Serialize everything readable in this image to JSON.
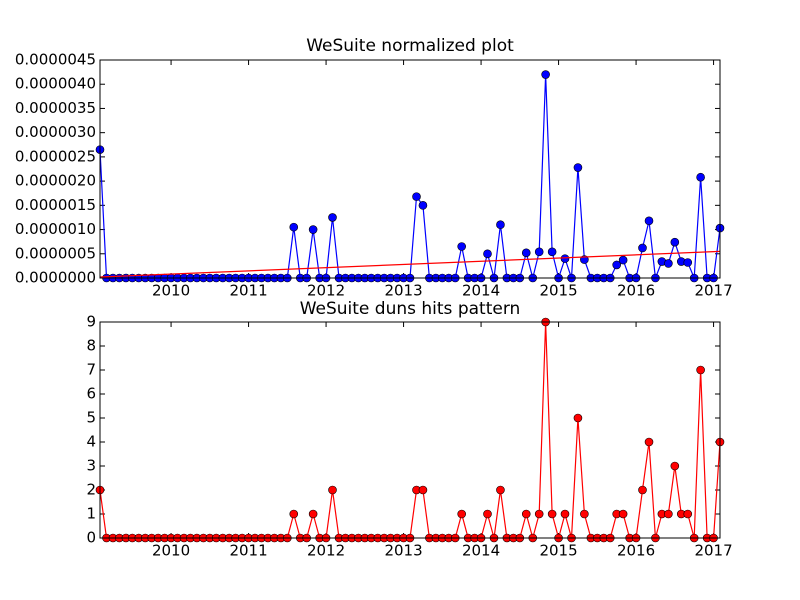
{
  "chart_data": [
    {
      "type": "line",
      "title": "WeSuite normalized plot",
      "x": [
        2009.083,
        2009.167,
        2009.25,
        2009.333,
        2009.417,
        2009.5,
        2009.583,
        2009.667,
        2009.75,
        2009.833,
        2009.917,
        2010,
        2010.083,
        2010.167,
        2010.25,
        2010.333,
        2010.417,
        2010.5,
        2010.583,
        2010.667,
        2010.75,
        2010.833,
        2010.917,
        2011,
        2011.083,
        2011.167,
        2011.25,
        2011.333,
        2011.417,
        2011.5,
        2011.583,
        2011.667,
        2011.75,
        2011.833,
        2011.917,
        2012,
        2012.083,
        2012.167,
        2012.25,
        2012.333,
        2012.417,
        2012.5,
        2012.583,
        2012.667,
        2012.75,
        2012.833,
        2012.917,
        2013,
        2013.083,
        2013.167,
        2013.25,
        2013.333,
        2013.417,
        2013.5,
        2013.583,
        2013.667,
        2013.75,
        2013.833,
        2013.917,
        2014,
        2014.083,
        2014.167,
        2014.25,
        2014.333,
        2014.417,
        2014.5,
        2014.583,
        2014.667,
        2014.75,
        2014.833,
        2014.917,
        2015,
        2015.083,
        2015.167,
        2015.25,
        2015.333,
        2015.417,
        2015.5,
        2015.583,
        2015.667,
        2015.75,
        2015.833,
        2015.917,
        2016,
        2016.083,
        2016.167,
        2016.25,
        2016.333,
        2016.417,
        2016.5,
        2016.583,
        2016.667,
        2016.75,
        2016.833,
        2016.917,
        2017,
        2017.083
      ],
      "series": [
        {
          "color": "#0000ff",
          "marker": true,
          "values": [
            2.65e-06,
            0,
            0,
            0,
            0,
            0,
            0,
            0,
            0,
            0,
            0,
            0,
            0,
            0,
            0,
            0,
            0,
            0,
            0,
            0,
            0,
            0,
            0,
            0,
            0,
            0,
            0,
            0,
            0,
            0,
            1.05e-06,
            0,
            0,
            1e-06,
            0,
            0,
            1.25e-06,
            0,
            0,
            0,
            0,
            0,
            0,
            0,
            0,
            0,
            0,
            0,
            0,
            1.68e-06,
            1.5e-06,
            0,
            0,
            0,
            0,
            0,
            6.5e-07,
            0,
            0,
            0,
            5e-07,
            0,
            1.1e-06,
            0,
            0,
            0,
            5.2e-07,
            0,
            5.4e-07,
            4.2e-06,
            5.4e-07,
            0,
            4e-07,
            0,
            2.28e-06,
            3.8e-07,
            0,
            0,
            0,
            0,
            2.7e-07,
            3.7e-07,
            0,
            0,
            6.2e-07,
            1.18e-06,
            0,
            3.4e-07,
            3e-07,
            7.4e-07,
            3.4e-07,
            3.2e-07,
            0,
            2.08e-06,
            0,
            0,
            1.03e-06
          ]
        },
        {
          "color": "#ff0000",
          "marker": false,
          "x": [
            2009.083,
            2017.083
          ],
          "values": [
            2e-08,
            5.5e-07
          ]
        }
      ],
      "xlim": [
        2009.083,
        2017.083
      ],
      "xticks": [
        2010,
        2011,
        2012,
        2013,
        2014,
        2015,
        2016,
        2017
      ],
      "ylim": [
        0,
        4.5e-06
      ],
      "yticks": [
        {
          "value": 0,
          "label": "0.0000000"
        },
        {
          "value": 5e-07,
          "label": "0.0000005"
        },
        {
          "value": 1e-06,
          "label": "0.0000010"
        },
        {
          "value": 1.5e-06,
          "label": "0.0000015"
        },
        {
          "value": 2e-06,
          "label": "0.0000020"
        },
        {
          "value": 2.5e-06,
          "label": "0.0000025"
        },
        {
          "value": 3e-06,
          "label": "0.0000030"
        },
        {
          "value": 3.5e-06,
          "label": "0.0000035"
        },
        {
          "value": 4e-06,
          "label": "0.0000040"
        },
        {
          "value": 4.5e-06,
          "label": "0.0000045"
        }
      ]
    },
    {
      "type": "line",
      "title": "WeSuite duns hits pattern",
      "x": [
        2009.083,
        2009.167,
        2009.25,
        2009.333,
        2009.417,
        2009.5,
        2009.583,
        2009.667,
        2009.75,
        2009.833,
        2009.917,
        2010,
        2010.083,
        2010.167,
        2010.25,
        2010.333,
        2010.417,
        2010.5,
        2010.583,
        2010.667,
        2010.75,
        2010.833,
        2010.917,
        2011,
        2011.083,
        2011.167,
        2011.25,
        2011.333,
        2011.417,
        2011.5,
        2011.583,
        2011.667,
        2011.75,
        2011.833,
        2011.917,
        2012,
        2012.083,
        2012.167,
        2012.25,
        2012.333,
        2012.417,
        2012.5,
        2012.583,
        2012.667,
        2012.75,
        2012.833,
        2012.917,
        2013,
        2013.083,
        2013.167,
        2013.25,
        2013.333,
        2013.417,
        2013.5,
        2013.583,
        2013.667,
        2013.75,
        2013.833,
        2013.917,
        2014,
        2014.083,
        2014.167,
        2014.25,
        2014.333,
        2014.417,
        2014.5,
        2014.583,
        2014.667,
        2014.75,
        2014.833,
        2014.917,
        2015,
        2015.083,
        2015.167,
        2015.25,
        2015.333,
        2015.417,
        2015.5,
        2015.583,
        2015.667,
        2015.75,
        2015.833,
        2015.917,
        2016,
        2016.083,
        2016.167,
        2016.25,
        2016.333,
        2016.417,
        2016.5,
        2016.583,
        2016.667,
        2016.75,
        2016.833,
        2016.917,
        2017,
        2017.083
      ],
      "series": [
        {
          "color": "#ff0000",
          "marker": true,
          "values": [
            2,
            0,
            0,
            0,
            0,
            0,
            0,
            0,
            0,
            0,
            0,
            0,
            0,
            0,
            0,
            0,
            0,
            0,
            0,
            0,
            0,
            0,
            0,
            0,
            0,
            0,
            0,
            0,
            0,
            0,
            1,
            0,
            0,
            1,
            0,
            0,
            2,
            0,
            0,
            0,
            0,
            0,
            0,
            0,
            0,
            0,
            0,
            0,
            0,
            2,
            2,
            0,
            0,
            0,
            0,
            0,
            1,
            0,
            0,
            0,
            1,
            0,
            2,
            0,
            0,
            0,
            1,
            0,
            1,
            9,
            1,
            0,
            1,
            0,
            5,
            1,
            0,
            0,
            0,
            0,
            1,
            1,
            0,
            0,
            2,
            4,
            0,
            1,
            1,
            3,
            1,
            1,
            0,
            7,
            0,
            0,
            4
          ]
        }
      ],
      "xlim": [
        2009.083,
        2017.083
      ],
      "xticks": [
        2010,
        2011,
        2012,
        2013,
        2014,
        2015,
        2016,
        2017
      ],
      "ylim": [
        0,
        9
      ],
      "yticks": [
        0,
        1,
        2,
        3,
        4,
        5,
        6,
        7,
        8,
        9
      ]
    }
  ]
}
